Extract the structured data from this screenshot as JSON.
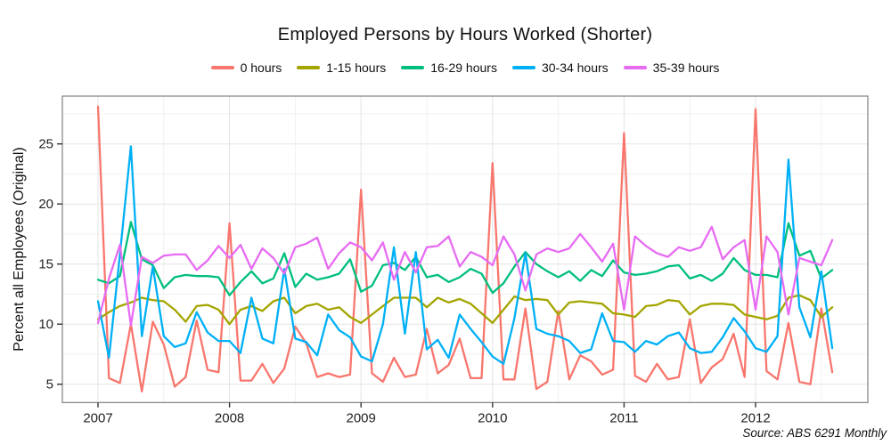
{
  "title": "Employed Persons by Hours Worked (Shorter)",
  "source_note": "Source: ABS 6291 Monthly",
  "chart_data": {
    "type": "line",
    "title": "Employed Persons by Hours Worked (Shorter)",
    "xlabel": "",
    "ylabel": "Percent all Employees (Original)",
    "x_tick_labels": [
      "2007",
      "2008",
      "2009",
      "2010",
      "2011",
      "2012"
    ],
    "y_ticks": [
      5,
      10,
      15,
      20,
      25
    ],
    "y_minor_ticks": [
      7.5,
      12.5,
      17.5,
      22.5,
      27.5
    ],
    "ylim": [
      3.5,
      28.9
    ],
    "x_start": "2007-01",
    "x_end": "2012-08",
    "points_per_series": 68,
    "frequency": "monthly",
    "grid": "major+minor",
    "legend_position": "top",
    "panel_border": true,
    "series": [
      {
        "name": "0 hours",
        "color": "#F8766D",
        "values": [
          28.1,
          5.5,
          5.1,
          10.0,
          4.4,
          10.2,
          8.3,
          4.8,
          5.6,
          10.3,
          6.2,
          6.0,
          18.4,
          5.3,
          5.3,
          6.7,
          5.1,
          6.3,
          9.8,
          8.4,
          5.6,
          5.9,
          5.6,
          5.8,
          21.2,
          5.9,
          5.2,
          7.2,
          5.6,
          5.8,
          9.6,
          5.9,
          6.6,
          8.8,
          5.5,
          5.5,
          23.4,
          5.4,
          5.4,
          11.3,
          4.6,
          5.2,
          11.1,
          5.4,
          7.4,
          6.9,
          5.8,
          6.2,
          25.9,
          5.7,
          5.2,
          6.7,
          5.4,
          5.6,
          10.4,
          5.1,
          6.4,
          7.1,
          9.2,
          5.6,
          27.9,
          6.1,
          5.4,
          10.1,
          5.2,
          5.0,
          11.3,
          6.0
        ]
      },
      {
        "name": "1-15 hours",
        "color": "#A3A500",
        "values": [
          10.4,
          11.0,
          11.5,
          11.8,
          12.2,
          12.0,
          11.9,
          11.2,
          10.2,
          11.5,
          11.6,
          11.2,
          10.0,
          11.2,
          11.5,
          11.1,
          11.9,
          12.2,
          10.9,
          11.5,
          11.7,
          11.2,
          11.4,
          10.6,
          10.1,
          10.8,
          11.5,
          12.2,
          12.2,
          12.2,
          11.4,
          12.2,
          11.8,
          12.1,
          11.7,
          10.9,
          10.1,
          11.2,
          12.3,
          12.0,
          12.1,
          12.0,
          10.8,
          11.8,
          11.9,
          11.8,
          11.7,
          10.9,
          10.8,
          10.6,
          11.5,
          11.6,
          12.0,
          11.9,
          10.8,
          11.5,
          11.7,
          11.7,
          11.6,
          10.8,
          10.6,
          10.4,
          10.7,
          12.2,
          12.4,
          12.0,
          10.6,
          11.4
        ]
      },
      {
        "name": "16-29 hours",
        "color": "#00BF7D",
        "values": [
          13.7,
          13.4,
          14.0,
          18.5,
          15.4,
          14.9,
          13.0,
          13.9,
          14.1,
          14.0,
          14.0,
          13.9,
          12.4,
          13.5,
          14.4,
          13.4,
          13.8,
          15.9,
          13.1,
          14.2,
          13.7,
          13.9,
          14.2,
          15.4,
          12.7,
          13.2,
          14.9,
          15.1,
          14.5,
          15.6,
          13.9,
          14.1,
          13.5,
          13.9,
          14.6,
          14.2,
          12.6,
          13.4,
          14.8,
          16.0,
          15.0,
          14.4,
          13.9,
          14.4,
          13.6,
          14.5,
          14.0,
          15.3,
          14.3,
          14.1,
          14.2,
          14.4,
          14.8,
          14.9,
          13.8,
          14.1,
          13.6,
          14.2,
          15.5,
          14.5,
          14.1,
          14.1,
          13.9,
          18.4,
          15.7,
          16.1,
          13.8,
          14.5
        ]
      },
      {
        "name": "30-34 hours",
        "color": "#00B0F6",
        "values": [
          11.9,
          7.2,
          15.8,
          24.8,
          9.0,
          14.8,
          9.0,
          8.1,
          8.4,
          11.0,
          9.3,
          8.6,
          8.6,
          7.6,
          12.2,
          8.8,
          8.4,
          14.6,
          8.8,
          8.5,
          7.4,
          10.8,
          9.5,
          8.9,
          7.3,
          6.9,
          10.0,
          16.4,
          9.2,
          16.0,
          7.9,
          8.7,
          7.2,
          10.8,
          9.6,
          8.5,
          7.3,
          6.7,
          10.5,
          15.9,
          9.6,
          9.2,
          9.0,
          8.6,
          7.6,
          7.9,
          10.9,
          8.6,
          8.5,
          7.7,
          8.6,
          8.3,
          9.0,
          9.3,
          8.0,
          7.6,
          7.7,
          8.9,
          10.5,
          9.4,
          8.0,
          7.7,
          9.0,
          23.7,
          11.4,
          8.9,
          14.4,
          8.0
        ]
      },
      {
        "name": "35-39 hours",
        "color": "#E76BF3",
        "values": [
          10.1,
          13.8,
          16.6,
          9.9,
          15.6,
          15.1,
          15.7,
          15.8,
          15.8,
          14.5,
          15.3,
          16.5,
          15.5,
          16.6,
          14.6,
          16.3,
          15.5,
          14.2,
          16.4,
          16.7,
          17.2,
          14.6,
          15.9,
          16.8,
          16.4,
          15.3,
          16.8,
          13.7,
          16.0,
          14.3,
          16.4,
          16.5,
          17.3,
          14.8,
          16.0,
          15.6,
          14.9,
          17.3,
          15.8,
          12.8,
          15.8,
          16.3,
          16.0,
          16.3,
          17.5,
          16.4,
          15.2,
          16.7,
          11.2,
          17.3,
          16.5,
          15.9,
          15.6,
          16.4,
          16.1,
          16.4,
          18.1,
          15.4,
          16.4,
          17.0,
          11.2,
          17.3,
          16.0,
          10.8,
          15.5,
          15.2,
          14.9,
          17.0
        ]
      }
    ]
  }
}
